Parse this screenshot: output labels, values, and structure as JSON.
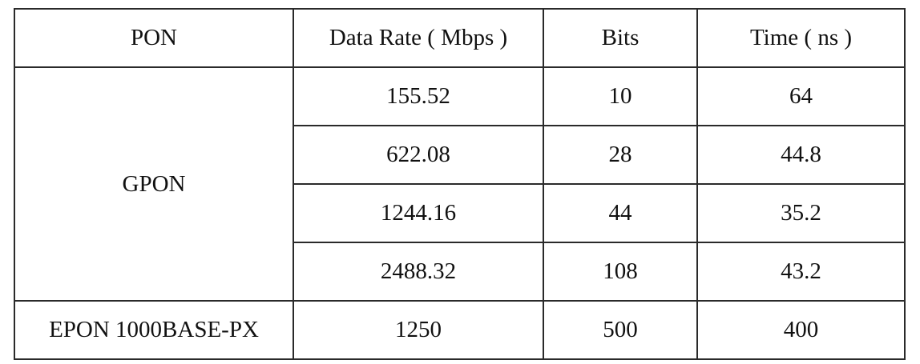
{
  "table": {
    "headers": [
      "PON",
      "Data Rate ( Mbps )",
      "Bits",
      "Time ( ns )"
    ],
    "groups": [
      {
        "pon": "GPON",
        "rows": [
          {
            "rate": "155.52",
            "bits": "10",
            "time": "64"
          },
          {
            "rate": "622.08",
            "bits": "28",
            "time": "44.8"
          },
          {
            "rate": "1244.16",
            "bits": "44",
            "time": "35.2"
          },
          {
            "rate": "2488.32",
            "bits": "108",
            "time": "43.2"
          }
        ]
      },
      {
        "pon": "EPON 1000BASE-PX",
        "rows": [
          {
            "rate": "1250",
            "bits": "500",
            "time": "400"
          }
        ]
      }
    ]
  }
}
